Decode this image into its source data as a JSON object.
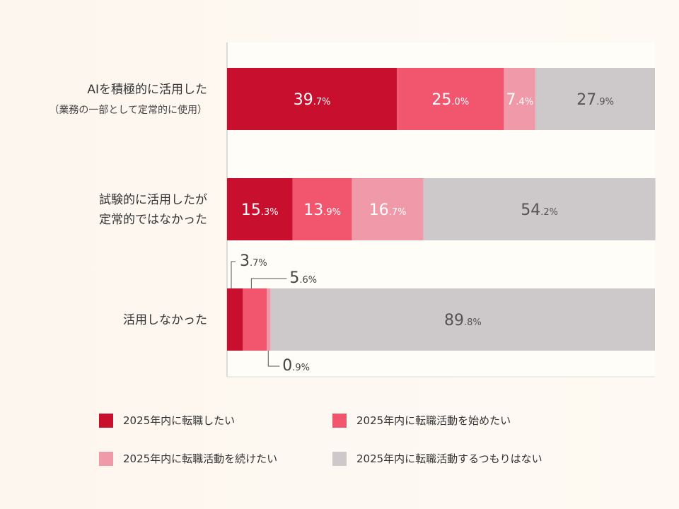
{
  "chart_data": {
    "type": "bar",
    "orientation": "horizontal",
    "stacked": true,
    "categories": [
      {
        "label": "AIを積極的に活用した",
        "sublabel": "（業務の一部として定常的に使用）"
      },
      {
        "label": "試験的に活用したが",
        "sublabel": "定常的ではなかった"
      },
      {
        "label": "活用しなかった",
        "sublabel": ""
      }
    ],
    "series": [
      {
        "name": "2025年内に転職したい",
        "color": "#c8102e",
        "values": [
          39.7,
          15.3,
          3.7
        ]
      },
      {
        "name": "2025年内に転職活動を始めたい",
        "color": "#f2566f",
        "values": [
          25.0,
          13.9,
          5.6
        ]
      },
      {
        "name": "2025年内に転職活動を続けたい",
        "color": "#f09aa9",
        "values": [
          7.4,
          16.7,
          0.9
        ]
      },
      {
        "name": "2025年内に転職活動するつもりはない",
        "color": "#cdc8c9",
        "values": [
          27.9,
          54.2,
          89.8
        ]
      }
    ],
    "unit": "%",
    "xlim": [
      0,
      100
    ],
    "legend_position": "bottom"
  }
}
